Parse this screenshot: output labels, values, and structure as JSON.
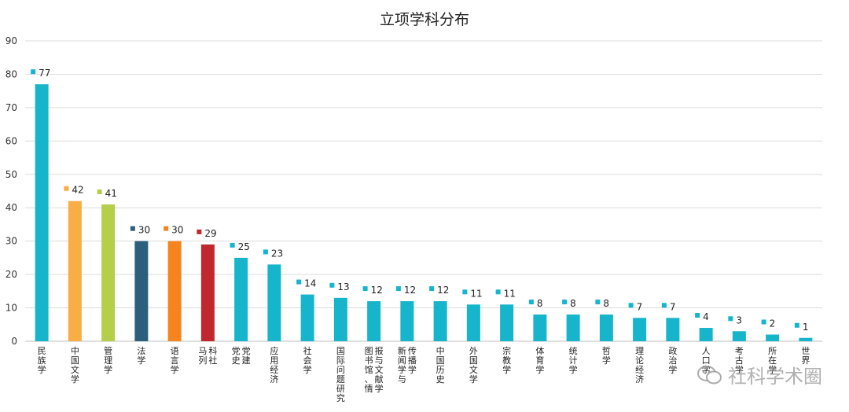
{
  "chart_data": {
    "type": "bar",
    "title": "立项学科分布",
    "xlabel": "",
    "ylabel": "",
    "ylim": [
      0,
      90
    ],
    "yticks": [
      0,
      10,
      20,
      30,
      40,
      50,
      60,
      70,
      80,
      90
    ],
    "grid": true,
    "legend": "none",
    "categories": [
      "民族学",
      "中国文学",
      "管理学",
      "法学",
      "语言学",
      "马列 科社",
      "党史 党建",
      "应用经济",
      "社会学",
      "国际问题研究",
      "图书馆、情报与文献学",
      "新闻学与传播学",
      "中国历史",
      "外国文学",
      "宗教学",
      "体育学",
      "统计学",
      "哲学",
      "理论经济",
      "政治学",
      "人口学",
      "考古学",
      "所在学",
      "世界"
    ],
    "values": [
      77,
      42,
      41,
      30,
      30,
      29,
      25,
      23,
      14,
      13,
      12,
      12,
      12,
      11,
      11,
      8,
      8,
      8,
      7,
      7,
      4,
      3,
      2,
      1
    ],
    "colors": [
      "#16b5cc",
      "#f9ad45",
      "#b5cf4b",
      "#2c5f7c",
      "#f5841f",
      "#c0282e",
      "#16b5cc",
      "#16b5cc",
      "#16b5cc",
      "#16b5cc",
      "#16b5cc",
      "#16b5cc",
      "#16b5cc",
      "#16b5cc",
      "#16b5cc",
      "#16b5cc",
      "#16b5cc",
      "#16b5cc",
      "#16b5cc",
      "#16b5cc",
      "#16b5cc",
      "#16b5cc",
      "#16b5cc",
      "#16b5cc"
    ]
  },
  "watermark": {
    "text": "社科学术圈"
  }
}
